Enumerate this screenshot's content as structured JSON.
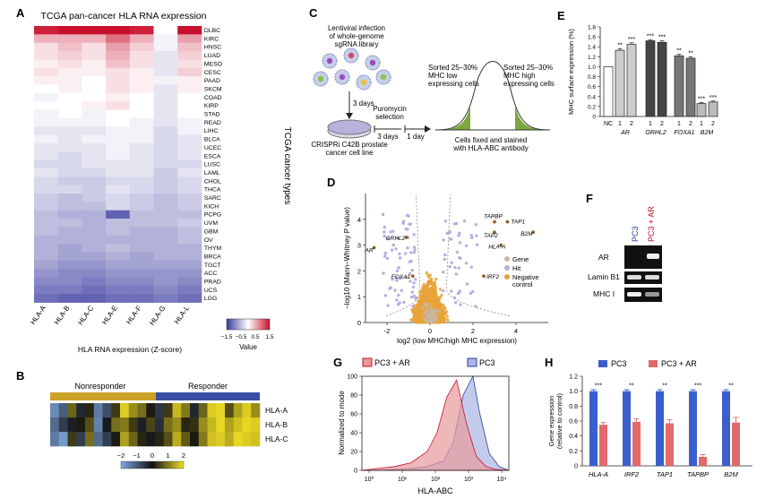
{
  "panels": {
    "A": {
      "letter": "A",
      "title": "TCGA pan-cancer HLA RNA expression",
      "ylabel": "TCGA cancer types",
      "xlabel": "HLA RNA expression (Z-score)",
      "colorbar_ticks": [
        "−1.5",
        "−0.5",
        "0.5",
        "1.5"
      ],
      "colorbar_label": "Value"
    },
    "B": {
      "letter": "B",
      "group_left": "Nonresponder",
      "group_right": "Responder",
      "colorbar_ticks": [
        "−2",
        "−1",
        "0",
        "1",
        "2"
      ]
    },
    "C": {
      "letter": "C",
      "step1": [
        "Lentiviral infection",
        "of whole-genome",
        "sgRNA library"
      ],
      "days1": "3 days",
      "cell_line": [
        "CRISPRi C42B prostate",
        "cancer cell line"
      ],
      "puro": [
        "Puromycin",
        "selection"
      ],
      "days2": "3 days",
      "days3": "1 day",
      "sort_low": [
        "Sorted 25–30%",
        "MHC low",
        "expressing cells"
      ],
      "sort_high": [
        "Sorted 25–30%",
        "MHC high",
        "expressing cells"
      ],
      "fixed": [
        "Cells fixed and stained",
        "with HLA-ABC antibody"
      ]
    },
    "D": {
      "letter": "D",
      "legend": [
        "Gene",
        "Hit",
        "Negative control"
      ]
    },
    "E": {
      "letter": "E",
      "ylabel": "MHC surface expression (%)",
      "group_labels": [
        "NC",
        "AR",
        "GRHL2",
        "FOXA1",
        "B2M"
      ]
    },
    "F": {
      "letter": "F",
      "lanes": [
        "PC3",
        "PC3 + AR"
      ],
      "rows": [
        "AR",
        "Lamin B1",
        "MHC I"
      ]
    },
    "G": {
      "letter": "G",
      "legend": [
        "PC3 + AR",
        "PC3"
      ]
    },
    "H": {
      "letter": "H",
      "legend": [
        "PC3",
        "PC3 + AR"
      ]
    }
  },
  "colors": {
    "red": "#c8102e",
    "blue": "#2c3f9e",
    "hit_orange": "#e8a33a",
    "hit_lilac": "#b7aee0",
    "green": "#7aa83c",
    "panelE_gray": [
      "#ffffff",
      "#cccccc",
      "#cccccc",
      "#444444",
      "#444444",
      "#777777",
      "#777777",
      "#bbbbbb",
      "#bbbbbb"
    ],
    "H_blue": "#3a5fcd",
    "H_red": "#e26a6a"
  },
  "chart_data": [
    {
      "id": "A",
      "type": "heatmap",
      "title": "TCGA pan-cancer HLA RNA expression",
      "xlabel": "HLA RNA expression (Z-score)",
      "ylabel": "TCGA cancer types",
      "columns": [
        "HLA-A",
        "HLA-B",
        "HLA-C",
        "HLA-E",
        "HLA-F",
        "HLA-G",
        "HLA-L"
      ],
      "rows": [
        "DLBC",
        "KIRC",
        "HNSC",
        "LUAD",
        "MESO",
        "CESC",
        "PAAD",
        "SKCM",
        "COAD",
        "KIRP",
        "STAD",
        "READ",
        "LIHC",
        "BLCA",
        "UCEC",
        "ESCA",
        "LUSC",
        "LAML",
        "CHOL",
        "THCA",
        "SARC",
        "KICH",
        "PCPG",
        "UVM",
        "GBM",
        "OV",
        "THYM",
        "BRCA",
        "TGCT",
        "ACC",
        "PRAD",
        "UCS",
        "LGG"
      ],
      "values": [
        [
          1.4,
          1.5,
          1.5,
          1.5,
          1.4,
          0.0,
          1.5
        ],
        [
          0.5,
          0.5,
          0.5,
          0.9,
          0.5,
          -0.1,
          0.6
        ],
        [
          0.2,
          0.4,
          0.2,
          0.6,
          0.3,
          -0.1,
          0.4
        ],
        [
          0.2,
          0.3,
          0.2,
          0.5,
          0.2,
          -0.2,
          0.3
        ],
        [
          0.1,
          0.2,
          0.1,
          0.4,
          0.2,
          -0.2,
          0.2
        ],
        [
          0.2,
          0.1,
          0.1,
          0.2,
          0.1,
          -0.2,
          0.3
        ],
        [
          0.1,
          0.1,
          0.0,
          0.2,
          0.1,
          -0.1,
          0.1
        ],
        [
          0.0,
          0.1,
          0.0,
          0.2,
          0.1,
          -0.2,
          0.1
        ],
        [
          -0.1,
          0.0,
          0.0,
          0.1,
          0.0,
          -0.2,
          0.0
        ],
        [
          0.0,
          0.0,
          0.1,
          0.2,
          0.0,
          -0.2,
          0.0
        ],
        [
          -0.1,
          0.0,
          -0.1,
          0.0,
          0.0,
          -0.2,
          0.0
        ],
        [
          -0.1,
          -0.1,
          -0.1,
          0.0,
          -0.1,
          -0.2,
          -0.1
        ],
        [
          -0.2,
          -0.2,
          -0.2,
          -0.1,
          -0.1,
          -0.3,
          -0.1
        ],
        [
          -0.1,
          -0.2,
          -0.1,
          -0.1,
          -0.1,
          -0.3,
          -0.2
        ],
        [
          -0.2,
          -0.2,
          -0.2,
          -0.1,
          -0.2,
          -0.3,
          -0.2
        ],
        [
          -0.2,
          -0.3,
          -0.2,
          -0.1,
          -0.2,
          -0.3,
          -0.2
        ],
        [
          -0.3,
          -0.3,
          -0.2,
          -0.2,
          -0.2,
          -0.3,
          -0.3
        ],
        [
          -0.2,
          -0.3,
          -0.3,
          -0.2,
          -0.2,
          -0.4,
          -0.2
        ],
        [
          -0.3,
          -0.4,
          -0.4,
          -0.3,
          -0.3,
          -0.4,
          -0.3
        ],
        [
          -0.3,
          -0.3,
          -0.4,
          -0.2,
          -0.3,
          -0.4,
          -0.3
        ],
        [
          -0.4,
          -0.5,
          -0.4,
          -0.3,
          -0.4,
          -0.5,
          -0.4
        ],
        [
          -0.4,
          -0.5,
          -0.5,
          -0.3,
          -0.4,
          -0.5,
          -0.4
        ],
        [
          -0.5,
          -0.6,
          -0.6,
          -1.2,
          -0.5,
          -0.5,
          -0.5
        ],
        [
          -0.5,
          -0.5,
          -0.6,
          -0.5,
          -0.5,
          -0.5,
          -0.4
        ],
        [
          -0.5,
          -0.6,
          -0.6,
          -0.5,
          -0.6,
          -0.6,
          -0.5
        ],
        [
          -0.6,
          -0.6,
          -0.6,
          -0.6,
          -0.6,
          -0.6,
          -0.5
        ],
        [
          -0.6,
          -0.7,
          -0.6,
          -0.5,
          -0.6,
          -0.6,
          -0.6
        ],
        [
          -0.6,
          -0.7,
          -0.7,
          -0.6,
          -0.7,
          -0.6,
          -0.6
        ],
        [
          -0.7,
          -0.8,
          -0.8,
          -0.7,
          -0.7,
          -0.7,
          -0.7
        ],
        [
          -0.8,
          -0.9,
          -0.9,
          -0.8,
          -0.8,
          -0.8,
          -0.8
        ],
        [
          -0.9,
          -0.9,
          -1.0,
          -0.9,
          -0.9,
          -0.8,
          -0.9
        ],
        [
          -1.0,
          -1.0,
          -1.1,
          -1.0,
          -1.0,
          -0.9,
          -1.0
        ],
        [
          -1.1,
          -1.2,
          -1.2,
          -1.1,
          -1.1,
          -1.0,
          -1.1
        ]
      ],
      "value_range": [
        -1.5,
        1.5
      ]
    },
    {
      "id": "B",
      "type": "heatmap",
      "rows": [
        "HLA-A",
        "HLA-B",
        "HLA-C"
      ],
      "groups": [
        {
          "name": "Nonresponder",
          "count": 12
        },
        {
          "name": "Responder",
          "count": 12
        }
      ],
      "values": [
        [
          -1.6,
          -1.0,
          0.8,
          -0.3,
          0.2,
          -1.4,
          -0.8,
          0.4,
          1.8,
          1.2,
          0.9,
          0.1,
          -0.5,
          0.4,
          1.6,
          1.0,
          -0.3,
          0.8,
          1.8,
          1.9,
          0.6,
          1.4,
          1.8,
          1.2
        ],
        [
          -1.2,
          -0.6,
          -0.2,
          0.1,
          0.6,
          -1.5,
          -0.1,
          0.9,
          1.0,
          0.4,
          -0.2,
          0.5,
          -0.4,
          0.9,
          1.2,
          0.2,
          0.3,
          1.2,
          1.6,
          1.9,
          1.4,
          1.7,
          1.9,
          1.8
        ],
        [
          -1.4,
          -1.8,
          0.4,
          -0.6,
          0.9,
          -1.2,
          -0.6,
          0.1,
          1.4,
          0.8,
          0.2,
          -0.1,
          0.2,
          0.6,
          1.5,
          0.7,
          0.1,
          1.0,
          1.7,
          1.8,
          1.5,
          1.9,
          1.8,
          1.7
        ]
      ],
      "value_range": [
        -2,
        2
      ]
    },
    {
      "id": "D",
      "type": "scatter",
      "xlabel": "log2 (low MHC/high MHC expression)",
      "ylabel": "−log10 (Mann–Whitney P value)",
      "xlim": [
        -3,
        5.5
      ],
      "ylim": [
        0,
        5
      ],
      "xticks": [
        "-2",
        "0",
        "2",
        "4"
      ],
      "yticks": [
        "0",
        "1",
        "2",
        "3",
        "4"
      ],
      "labeled_points": [
        {
          "name": "AR",
          "x": -2.6,
          "y": 2.9
        },
        {
          "name": "GRHL2",
          "x": -1.1,
          "y": 3.3
        },
        {
          "name": "FOXA1",
          "x": -0.8,
          "y": 1.8
        },
        {
          "name": "TAPBP",
          "x": 3.0,
          "y": 3.9
        },
        {
          "name": "TAP1",
          "x": 3.6,
          "y": 3.9
        },
        {
          "name": "TAP2",
          "x": 3.0,
          "y": 3.5
        },
        {
          "name": "B2M",
          "x": 4.8,
          "y": 3.5
        },
        {
          "name": "HLA-A",
          "x": 3.3,
          "y": 3.0
        },
        {
          "name": "IRF2",
          "x": 2.5,
          "y": 1.8
        }
      ]
    },
    {
      "id": "E",
      "type": "bar",
      "ylabel": "MHC surface expression (%)",
      "ylim": [
        0,
        1.8
      ],
      "yticks": [
        "0",
        "0.2",
        "0.4",
        "0.6",
        "0.8",
        "1.0",
        "1.2",
        "1.4",
        "1.6",
        "1.8"
      ],
      "categories": [
        "NC",
        "1",
        "2",
        "1",
        "2",
        "1",
        "2",
        "1",
        "2"
      ],
      "groups": [
        "NC",
        "AR",
        "AR",
        "GRHL2",
        "GRHL2",
        "FOXA1",
        "FOXA1",
        "B2M",
        "B2M"
      ],
      "values": [
        1.0,
        1.33,
        1.45,
        1.52,
        1.49,
        1.22,
        1.17,
        0.26,
        0.29
      ],
      "errors": [
        0.0,
        0.03,
        0.03,
        0.02,
        0.03,
        0.03,
        0.03,
        0.02,
        0.02
      ],
      "significance": [
        "",
        "**",
        "***",
        "***",
        "***",
        "**",
        "**",
        "***",
        "***"
      ]
    },
    {
      "id": "G",
      "type": "area",
      "xlabel": "HLA-ABC",
      "ylabel": "Normalized to mode",
      "xticks": [
        "10⁰",
        "10¹",
        "10²",
        "10³",
        "10⁴"
      ],
      "yticks": [
        "0",
        "20",
        "40",
        "60",
        "80",
        "100"
      ],
      "ylim": [
        0,
        100
      ],
      "series": [
        {
          "name": "PC3 + AR",
          "x": [
            0.0,
            0.5,
            1.0,
            1.5,
            2.0,
            2.3,
            2.6,
            2.9,
            3.2,
            3.5,
            3.8,
            4.1,
            4.5
          ],
          "values": [
            0,
            2,
            4,
            8,
            20,
            40,
            78,
            96,
            50,
            15,
            4,
            1,
            0
          ]
        },
        {
          "name": "PC3",
          "x": [
            0.0,
            0.5,
            1.0,
            1.5,
            2.0,
            2.5,
            2.8,
            3.1,
            3.4,
            3.6,
            3.9,
            4.2,
            4.5
          ],
          "values": [
            0,
            0,
            1,
            2,
            4,
            10,
            30,
            80,
            100,
            62,
            18,
            4,
            0
          ]
        }
      ]
    },
    {
      "id": "H",
      "type": "bar",
      "ylabel": "Gene expression (relative to control)",
      "ylim": [
        0,
        1.2
      ],
      "yticks": [
        "0",
        "0.2",
        "0.4",
        "0.6",
        "0.8",
        "1.0",
        "1.2"
      ],
      "categories": [
        "HLA-A",
        "IRF2",
        "TAP1",
        "TAPBP",
        "B2M"
      ],
      "series": [
        {
          "name": "PC3",
          "values": [
            1.0,
            1.0,
            1.0,
            1.0,
            1.0
          ],
          "errors": [
            0.02,
            0.02,
            0.02,
            0.02,
            0.02
          ]
        },
        {
          "name": "PC3 + AR",
          "values": [
            0.55,
            0.59,
            0.57,
            0.12,
            0.58
          ],
          "errors": [
            0.03,
            0.04,
            0.05,
            0.03,
            0.07
          ]
        }
      ],
      "significance": [
        "***",
        "**",
        "**",
        "***",
        "**"
      ]
    }
  ]
}
